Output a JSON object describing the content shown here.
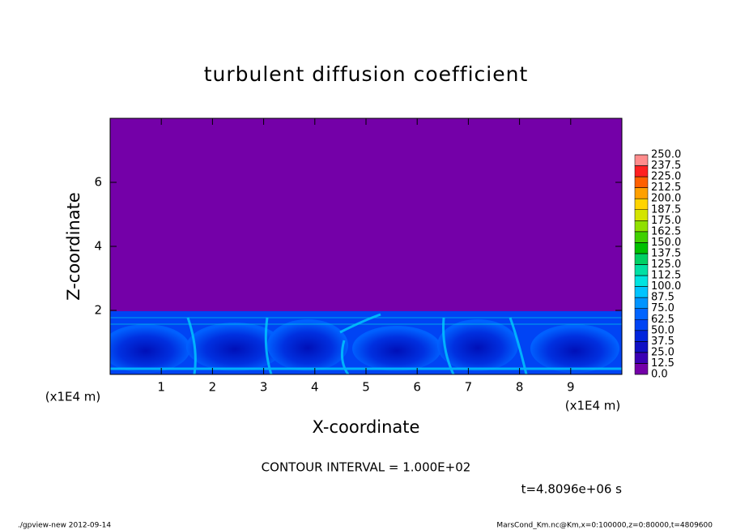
{
  "chart_data": {
    "type": "contour",
    "title": "turbulent diffusion coefficient",
    "x_label": "X-coordinate",
    "y_label": "Z-coordinate",
    "x_unit": "(x1E4 m)",
    "y_unit": "(x1E4 m)",
    "xlim": [
      0,
      10
    ],
    "xticks": [
      1,
      2,
      3,
      4,
      5,
      6,
      7,
      8,
      9
    ],
    "ylim": [
      0,
      8
    ],
    "yticks": [
      2,
      4,
      6
    ],
    "contour_interval": "CONTOUR INTERVAL = 1.000E+02",
    "time": "t=4.8096e+06 s",
    "levels": [
      {
        "value": 0,
        "label": "0.0"
      },
      12.5,
      25,
      37.5,
      50,
      62.5,
      75,
      87.5,
      100,
      112.5,
      125,
      137.5,
      150,
      162.5,
      175,
      187.5,
      200,
      212.5,
      225,
      237.5,
      {
        "value": 250,
        "label": "250.0"
      }
    ],
    "level_labels": [
      "0.0",
      "12.5",
      "25.0",
      "37.5",
      "50.0",
      "62.5",
      "75.0",
      "87.5",
      "100.0",
      "112.5",
      "125.0",
      "137.5",
      "150.0",
      "162.5",
      "175.0",
      "187.5",
      "200.0",
      "212.5",
      "225.0",
      "237.5",
      "250.0"
    ],
    "colors": [
      "#7400a8",
      "#3a00b4",
      "#1010c4",
      "#0024dc",
      "#0044f4",
      "#0064ff",
      "#0094ff",
      "#00c4ff",
      "#00e4e0",
      "#00e0a4",
      "#00d064",
      "#00c000",
      "#40d000",
      "#90e000",
      "#d4e400",
      "#ffd400",
      "#ffa000",
      "#ff6000",
      "#ff2020",
      "#ff8c8c"
    ],
    "footer_left": "./gpview-new  2012-09-14",
    "footer_right": "MarsCond_Km.nc@Km,x=0:100000,z=0:80000,t=4809600"
  }
}
